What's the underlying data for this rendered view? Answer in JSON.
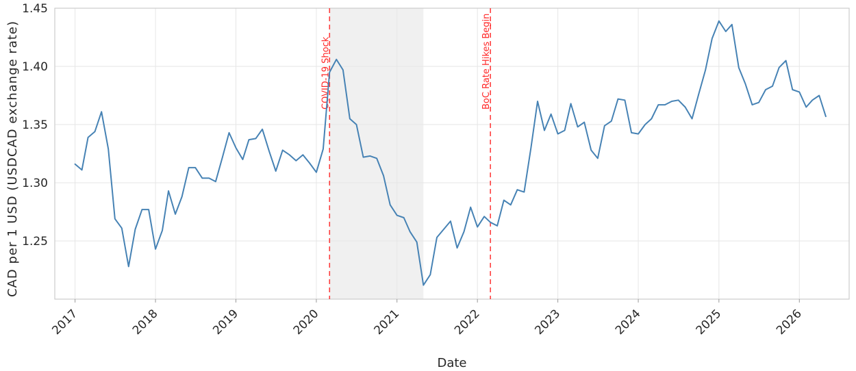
{
  "chart_data": {
    "type": "line",
    "title": "",
    "xlabel": "Date",
    "ylabel": "CAD per 1 USD (USDCAD exchange rate)",
    "xlim": [
      "2016-10-01",
      "2026-08-15"
    ],
    "ylim": [
      1.2,
      1.45
    ],
    "grid": true,
    "line_color": "#4682b4",
    "annotation_color": "#ff0000",
    "shade_color": "#f0f0f0",
    "y_ticks": [
      {
        "value": 1.25,
        "label": "1.25"
      },
      {
        "value": 1.3,
        "label": "1.30"
      },
      {
        "value": 1.35,
        "label": "1.35"
      },
      {
        "value": 1.4,
        "label": "1.40"
      },
      {
        "value": 1.45,
        "label": "1.45"
      }
    ],
    "x_ticks": [
      {
        "value": "2017-01-01",
        "label": "2017"
      },
      {
        "value": "2018-01-01",
        "label": "2018"
      },
      {
        "value": "2019-01-01",
        "label": "2019"
      },
      {
        "value": "2020-01-01",
        "label": "2020"
      },
      {
        "value": "2021-01-01",
        "label": "2021"
      },
      {
        "value": "2022-01-01",
        "label": "2022"
      },
      {
        "value": "2023-01-01",
        "label": "2023"
      },
      {
        "value": "2024-01-01",
        "label": "2024"
      },
      {
        "value": "2025-01-01",
        "label": "2025"
      },
      {
        "value": "2026-01-01",
        "label": "2026"
      }
    ],
    "shaded_regions": [
      {
        "start": "2020-03-01",
        "end": "2021-05-01"
      }
    ],
    "events": [
      {
        "date": "2020-03-01",
        "label": "COVID-19 Shock"
      },
      {
        "date": "2022-03-01",
        "label": "BoC Rate Hikes Begin"
      }
    ],
    "series": [
      {
        "x": [
          "2017-01-01",
          "2017-02-01",
          "2017-03-01",
          "2017-04-01",
          "2017-05-01",
          "2017-06-01",
          "2017-07-01",
          "2017-08-01",
          "2017-09-01",
          "2017-10-01",
          "2017-11-01",
          "2017-12-01",
          "2018-01-01",
          "2018-02-01",
          "2018-03-01",
          "2018-04-01",
          "2018-05-01",
          "2018-06-01",
          "2018-07-01",
          "2018-08-01",
          "2018-09-01",
          "2018-10-01",
          "2018-11-01",
          "2018-12-01",
          "2019-01-01",
          "2019-02-01",
          "2019-03-01",
          "2019-04-01",
          "2019-05-01",
          "2019-06-01",
          "2019-07-01",
          "2019-08-01",
          "2019-09-01",
          "2019-10-01",
          "2019-11-01",
          "2019-12-01",
          "2020-01-01",
          "2020-02-01",
          "2020-03-01",
          "2020-04-01",
          "2020-05-01",
          "2020-06-01",
          "2020-07-01",
          "2020-08-01",
          "2020-09-01",
          "2020-10-01",
          "2020-11-01",
          "2020-12-01",
          "2021-01-01",
          "2021-02-01",
          "2021-03-01",
          "2021-04-01",
          "2021-05-01",
          "2021-06-01",
          "2021-07-01",
          "2021-08-01",
          "2021-09-01",
          "2021-10-01",
          "2021-11-01",
          "2021-12-01",
          "2022-01-01",
          "2022-02-01",
          "2022-03-01",
          "2022-04-01",
          "2022-05-01",
          "2022-06-01",
          "2022-07-01",
          "2022-08-01",
          "2022-09-01",
          "2022-10-01",
          "2022-11-01",
          "2022-12-01",
          "2023-01-01",
          "2023-02-01",
          "2023-03-01",
          "2023-04-01",
          "2023-05-01",
          "2023-06-01",
          "2023-07-01",
          "2023-08-01",
          "2023-09-01",
          "2023-10-01",
          "2023-11-01",
          "2023-12-01",
          "2024-01-01",
          "2024-02-01",
          "2024-03-01",
          "2024-04-01",
          "2024-05-01",
          "2024-06-01",
          "2024-07-01",
          "2024-08-01",
          "2024-09-01",
          "2024-10-01",
          "2024-11-01",
          "2024-12-01",
          "2025-01-01",
          "2025-02-01",
          "2025-03-01",
          "2025-04-01",
          "2025-05-01",
          "2025-06-01",
          "2025-07-01",
          "2025-08-01",
          "2025-09-01",
          "2025-10-01",
          "2025-11-01",
          "2025-12-01",
          "2026-01-01",
          "2026-02-01",
          "2026-03-01",
          "2026-04-01",
          "2026-05-01"
        ],
        "values": [
          1.316,
          1.311,
          1.339,
          1.344,
          1.361,
          1.329,
          1.269,
          1.261,
          1.228,
          1.26,
          1.277,
          1.277,
          1.243,
          1.259,
          1.293,
          1.273,
          1.288,
          1.313,
          1.313,
          1.304,
          1.304,
          1.301,
          1.322,
          1.343,
          1.33,
          1.32,
          1.337,
          1.338,
          1.346,
          1.327,
          1.31,
          1.328,
          1.324,
          1.319,
          1.324,
          1.317,
          1.309,
          1.329,
          1.395,
          1.406,
          1.397,
          1.355,
          1.35,
          1.322,
          1.323,
          1.321,
          1.306,
          1.281,
          1.272,
          1.27,
          1.258,
          1.249,
          1.212,
          1.221,
          1.253,
          1.26,
          1.267,
          1.244,
          1.258,
          1.279,
          1.262,
          1.271,
          1.266,
          1.263,
          1.285,
          1.281,
          1.294,
          1.292,
          1.33,
          1.37,
          1.345,
          1.359,
          1.342,
          1.345,
          1.368,
          1.348,
          1.352,
          1.328,
          1.321,
          1.349,
          1.353,
          1.372,
          1.371,
          1.343,
          1.342,
          1.35,
          1.355,
          1.367,
          1.367,
          1.37,
          1.371,
          1.365,
          1.355,
          1.376,
          1.397,
          1.424,
          1.439,
          1.43,
          1.436,
          1.399,
          1.385,
          1.367,
          1.369,
          1.38,
          1.383,
          1.399,
          1.405,
          1.38,
          1.378,
          1.365,
          1.371,
          1.375,
          1.357
        ]
      }
    ]
  }
}
